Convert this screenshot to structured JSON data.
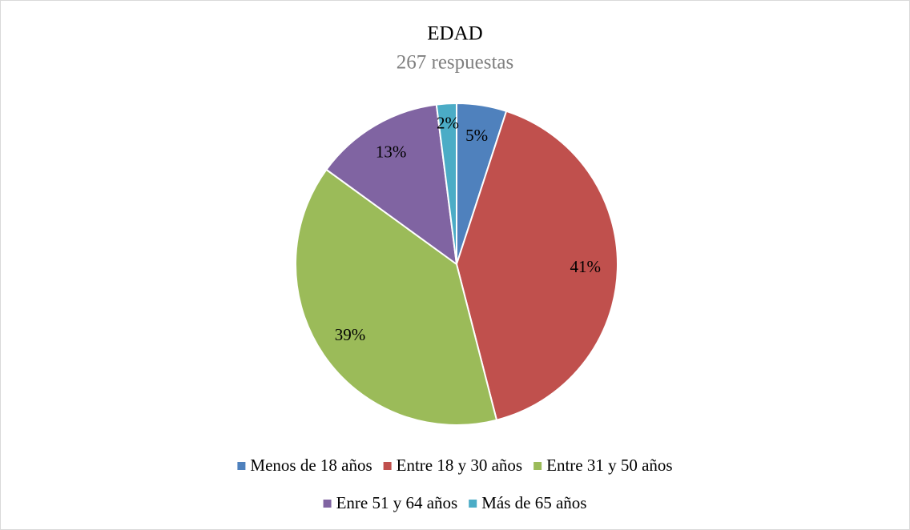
{
  "chart_data": {
    "type": "pie",
    "title": "EDAD",
    "subtitle": "267 respuestas",
    "categories": [
      "Menos de 18 años",
      "Entre 18 y 30 años",
      "Entre 31 y 50 años",
      "Enre 51 y 64 años",
      "Más de 65 años"
    ],
    "values": [
      5,
      41,
      39,
      13,
      2
    ],
    "value_labels": [
      "5%",
      "41%",
      "39%",
      "13%",
      "2%"
    ],
    "colors": [
      "#4f81bd",
      "#c0504d",
      "#9bbb59",
      "#8064a2",
      "#4bacc6"
    ],
    "legend": "bottom"
  }
}
